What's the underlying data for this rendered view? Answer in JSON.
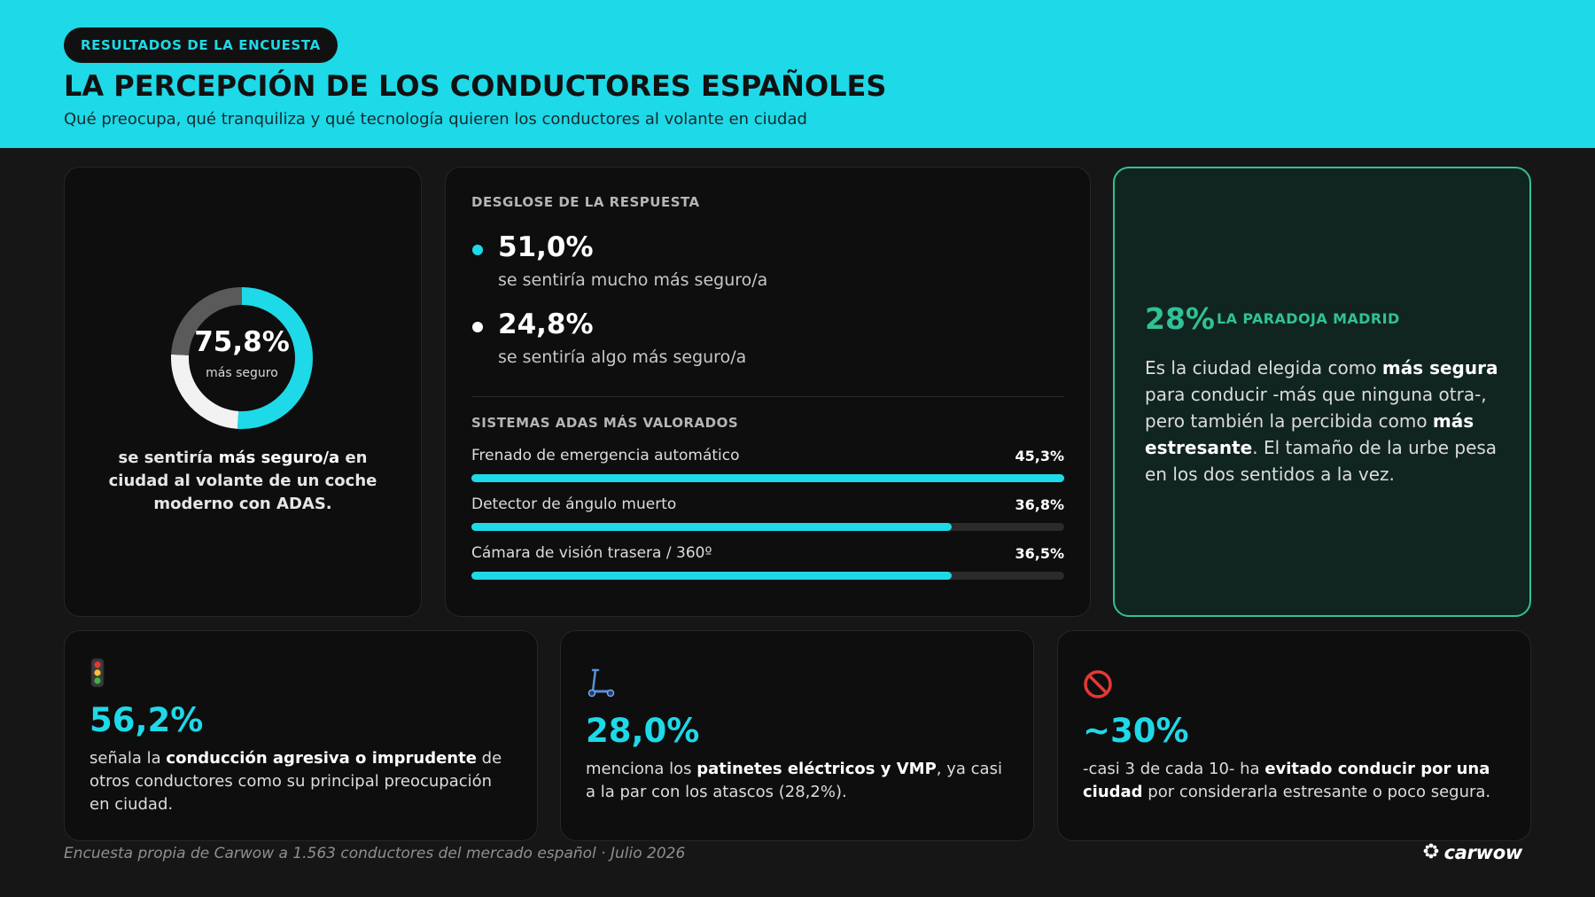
{
  "header": {
    "badge": "RESULTADOS DE LA ENCUESTA",
    "title": "LA PERCEPCIÓN DE LOS CONDUCTORES ESPAÑOLES",
    "subtitle": "Qué preocupa, qué tranquiliza y qué tecnología quieren los conductores al volante en ciudad"
  },
  "colors": {
    "accent": "#1ed9e8",
    "green": "#31c196",
    "background": "#161616",
    "card": "#0e0e0e"
  },
  "summary": {
    "value": "75,8%",
    "label": "más seguro",
    "text_pre": "se sentiría ",
    "text_bold": "más seguro/a",
    "text_post": " en ciudad al volante de un coche moderno con ADAS.",
    "segments": [
      {
        "name": "mucho",
        "value": 51.0,
        "color": "#1ed9e8"
      },
      {
        "name": "algo",
        "value": 24.8,
        "color": "#f2f2f2"
      },
      {
        "name": "resto",
        "value": 24.2,
        "color": "#5a5a5a"
      }
    ]
  },
  "breakdown": {
    "title": "DESGLOSE DE LA RESPUESTA",
    "items": [
      {
        "value": "51,0%",
        "desc": "se sentiría mucho más seguro/a",
        "color": "#1ed9e8"
      },
      {
        "value": "24,8%",
        "desc": "se sentiría algo más seguro/a",
        "color": "#ffffff"
      }
    ]
  },
  "adas": {
    "title": "SISTEMAS ADAS MÁS VALORADOS",
    "bars": [
      {
        "label": "Frenado de emergencia automático",
        "value_label": "45,3%",
        "fill": 1.0
      },
      {
        "label": "Detector de ángulo muerto",
        "value_label": "36,8%",
        "fill": 0.81
      },
      {
        "label": "Cámara de visión trasera / 360º",
        "value_label": "36,5%",
        "fill": 0.81
      }
    ]
  },
  "madrid": {
    "pct": "28%",
    "label": "LA PARADOJA MADRID",
    "t1": "Es la ciudad elegida como ",
    "b1": "más segura",
    "t2": " para conducir -más que ninguna otra-, pero también la percibida como ",
    "b2": "más estresante",
    "t3": ". El tamaño de la urbe pesa en los dos sentidos a la vez."
  },
  "stats": [
    {
      "icon": "traffic-light-icon",
      "value": "56,2%",
      "t1": "señala la ",
      "b1": "conducción agresiva o imprudente",
      "t2": " de otros conductores como su principal preocupación en ciudad."
    },
    {
      "icon": "scooter-icon",
      "value": "28,0%",
      "t1": "menciona los ",
      "b1": "patinetes eléctricos y VMP",
      "t2": ", ya casi a la par con los atascos (28,2%)."
    },
    {
      "icon": "no-entry-icon",
      "value": "~30%",
      "t1": "-casi 3 de cada 10- ha ",
      "b1": "evitado conducir por una ciudad",
      "t2": " por considerarla estresante o poco segura."
    }
  ],
  "footer": {
    "note": "Encuesta propia de Carwow a 1.563 conductores del mercado español · Julio 2026",
    "logo": "carwow"
  }
}
